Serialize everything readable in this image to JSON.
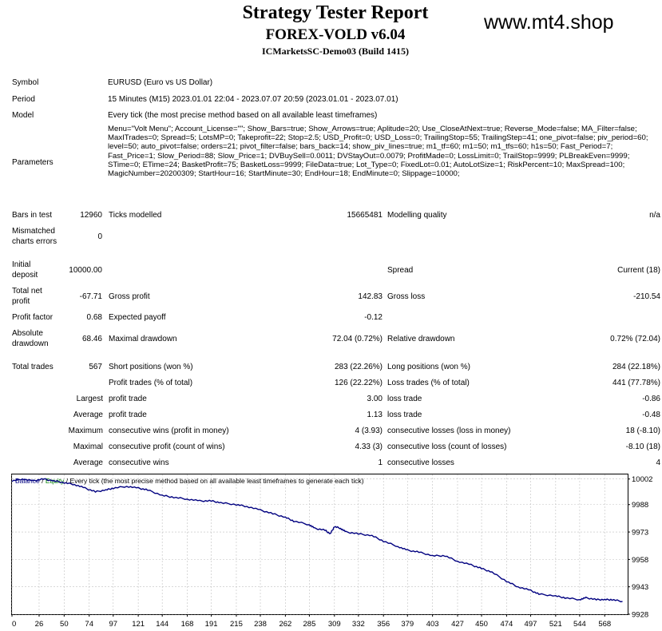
{
  "header": {
    "title": "Strategy Tester Report",
    "ea_name": "FOREX-VOLD v6.04",
    "server": "ICMarketsSC-Demo03 (Build 1415)",
    "watermark": "www.mt4.shop"
  },
  "info": {
    "symbol_label": "Symbol",
    "symbol_value": "EURUSD (Euro vs US Dollar)",
    "period_label": "Period",
    "period_value": "15 Minutes (M15) 2023.01.01 22:04 - 2023.07.07 20:59 (2023.01.01 - 2023.07.01)",
    "model_label": "Model",
    "model_value": "Every tick (the most precise method based on all available least timeframes)",
    "parameters_label": "Parameters",
    "parameters_value": "Menu=\"Volt Menu\"; Account_License=\"\"; Show_Bars=true; Show_Arrows=true; Aplitude=20; Use_CloseAtNext=true; Reverse_Mode=false; MA_Filter=false; MaxITrades=0; Spread=5; LotsMP=0; Takeprofit=22; Stop=2.5; USD_Profit=0; USD_Loss=0; TrailingStop=55; TrailingStep=41; one_pivot=false; piv_period=60; level=50; auto_pivot=false; orders=21; pivot_filter=false; bars_back=14; show_piv_lines=true; m1_tf=60; m1=50; m1_tfs=60; h1s=50; Fast_Period=7; Fast_Price=1; Slow_Period=88; Slow_Price=1; DVBuySell=0.0011; DVStayOut=0.0079; ProfitMade=0; LossLimit=0; TrailStop=9999; PLBreakEven=9999; STime=0; ETime=24; BasketProfit=75; BasketLoss=9999; FileData=true; Lot_Type=0; FixedLot=0.01; AutoLotSize=1; RiskPercent=10; MaxSpread=100; MagicNumber=20200309; StartHour=16; StartMinute=30; EndHour=18; EndMinute=0; Slippage=10000;"
  },
  "stats": {
    "bars_label": "Bars in test",
    "bars_value": "12960",
    "ticks_label": "Ticks modelled",
    "ticks_value": "15665481",
    "quality_label": "Modelling quality",
    "quality_value": "n/a",
    "mismatch_label": "Mismatched charts errors",
    "mismatch_value": "0",
    "deposit_label": "Initial deposit",
    "deposit_value": "10000.00",
    "spread_label": "Spread",
    "spread_value": "Current (18)",
    "netprofit_label": "Total net profit",
    "netprofit_value": "-67.71",
    "grossprofit_label": "Gross profit",
    "grossprofit_value": "142.83",
    "grossloss_label": "Gross loss",
    "grossloss_value": "-210.54",
    "pf_label": "Profit factor",
    "pf_value": "0.68",
    "expected_label": "Expected payoff",
    "expected_value": "-0.12",
    "absdd_label": "Absolute drawdown",
    "absdd_value": "68.46",
    "maxdd_label": "Maximal drawdown",
    "maxdd_value": "72.04 (0.72%)",
    "reldd_label": "Relative drawdown",
    "reldd_value": "0.72% (72.04)",
    "trades_label": "Total trades",
    "trades_value": "567",
    "short_label": "Short positions (won %)",
    "short_value": "283 (22.26%)",
    "long_label": "Long positions (won %)",
    "long_value": "284 (22.18%)",
    "profittrades_label": "Profit trades (% of total)",
    "profittrades_value": "126 (22.22%)",
    "losstrades_label": "Loss trades (% of total)",
    "losstrades_value": "441 (77.78%)",
    "largest_label": "Largest",
    "largest_profit_label": "profit trade",
    "largest_profit_value": "3.00",
    "largest_loss_label": "loss trade",
    "largest_loss_value": "-0.86",
    "average_label": "Average",
    "average_profit_label": "profit trade",
    "average_profit_value": "1.13",
    "average_loss_label": "loss trade",
    "average_loss_value": "-0.48",
    "maximum_label": "Maximum",
    "max_wins_label": "consecutive wins (profit in money)",
    "max_wins_value": "4 (3.93)",
    "max_losses_label": "consecutive losses (loss in money)",
    "max_losses_value": "18 (-8.10)",
    "maximal_label": "Maximal",
    "maximal_profit_label": "consecutive profit (count of wins)",
    "maximal_profit_value": "4.33 (3)",
    "maximal_loss_label": "consecutive loss (count of losses)",
    "maximal_loss_value": "-8.10 (18)",
    "avg2_label": "Average",
    "avg_wins_label": "consecutive wins",
    "avg_wins_value": "1",
    "avg_losses_label": "consecutive losses",
    "avg_losses_value": "4"
  },
  "chart_data": {
    "type": "line",
    "legend_balance": "Balance",
    "legend_sep1": " / ",
    "legend_equity": "Equity",
    "legend_rest": " / Every tick (the most precise method based on all available least timeframes to generate each tick)",
    "x_ticks": [
      0,
      26,
      50,
      74,
      97,
      121,
      144,
      168,
      191,
      215,
      238,
      262,
      285,
      309,
      332,
      356,
      379,
      403,
      427,
      450,
      474,
      497,
      521,
      544,
      568
    ],
    "y_ticks": [
      10002,
      9988,
      9973,
      9958,
      9943,
      9928
    ],
    "xlim": [
      0,
      590
    ],
    "ylim": [
      9928,
      10004.5
    ],
    "series": [
      {
        "color": "#000080",
        "points": [
          [
            0,
            10001
          ],
          [
            10,
            10002
          ],
          [
            20,
            10001
          ],
          [
            30,
            10002
          ],
          [
            40,
            10001
          ],
          [
            50,
            10000
          ],
          [
            60,
            9999
          ],
          [
            70,
            9997
          ],
          [
            80,
            9995
          ],
          [
            90,
            9996
          ],
          [
            97,
            9997
          ],
          [
            110,
            9998
          ],
          [
            121,
            9997
          ],
          [
            130,
            9996
          ],
          [
            144,
            9993
          ],
          [
            155,
            9992
          ],
          [
            168,
            9991
          ],
          [
            180,
            9990
          ],
          [
            191,
            9990
          ],
          [
            200,
            9989
          ],
          [
            215,
            9988
          ],
          [
            225,
            9987
          ],
          [
            238,
            9985
          ],
          [
            250,
            9983
          ],
          [
            262,
            9981
          ],
          [
            270,
            9979
          ],
          [
            285,
            9977
          ],
          [
            290,
            9975
          ],
          [
            300,
            9974
          ],
          [
            305,
            9972
          ],
          [
            309,
            9976
          ],
          [
            315,
            9975
          ],
          [
            320,
            9973
          ],
          [
            332,
            9972
          ],
          [
            345,
            9971
          ],
          [
            356,
            9968
          ],
          [
            370,
            9965
          ],
          [
            379,
            9963
          ],
          [
            390,
            9962
          ],
          [
            403,
            9960
          ],
          [
            415,
            9960
          ],
          [
            427,
            9957
          ],
          [
            440,
            9955
          ],
          [
            450,
            9953
          ],
          [
            460,
            9951
          ],
          [
            474,
            9946
          ],
          [
            485,
            9943
          ],
          [
            497,
            9941
          ],
          [
            505,
            9939
          ],
          [
            521,
            9938
          ],
          [
            530,
            9937
          ],
          [
            544,
            9936
          ],
          [
            550,
            9937
          ],
          [
            560,
            9936
          ],
          [
            568,
            9936
          ],
          [
            575,
            9936
          ],
          [
            585,
            9935
          ]
        ]
      }
    ]
  },
  "colors": {
    "balance": "#000080",
    "equity": "#008000",
    "grid": "#c0c0c0"
  }
}
